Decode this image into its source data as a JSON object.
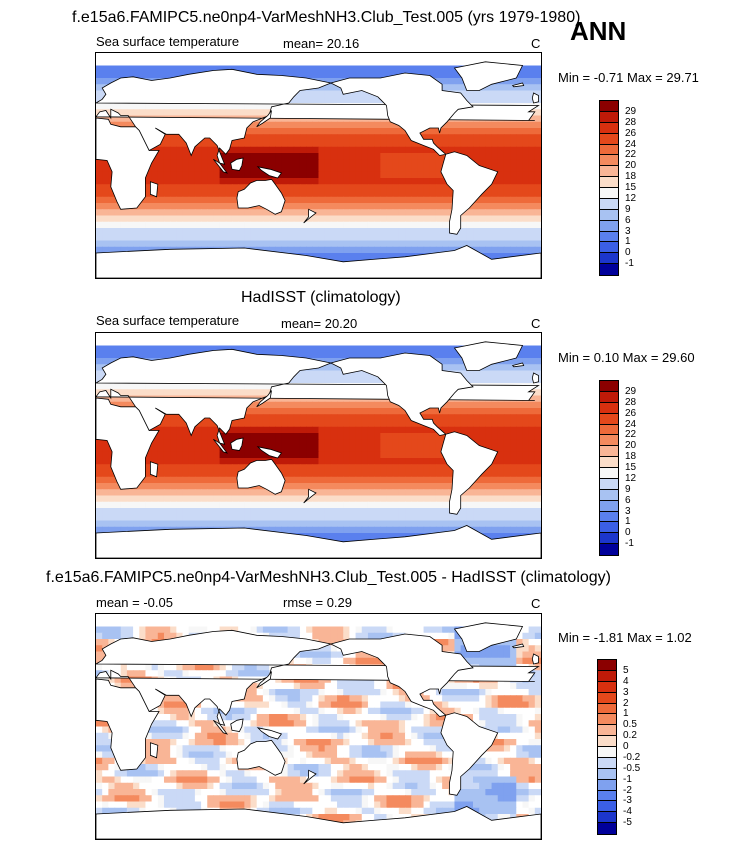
{
  "season": "ANN",
  "panels": [
    {
      "title": "f.e15a6.FAMIPC5.ne0np4-VarMeshNH3.Club_Test.005 (yrs 1979-1980)",
      "left_label": "Sea surface temperature",
      "center_label": "mean=  20.16",
      "right_label": "C",
      "minmax": "Min =  -0.71 Max =  29.71",
      "levels": [
        "29",
        "28",
        "26",
        "24",
        "22",
        "20",
        "18",
        "15",
        "12",
        "9",
        "6",
        "3",
        "1",
        "0",
        "-1"
      ],
      "colors": [
        "#8b0000",
        "#bf1a08",
        "#d8300f",
        "#e4481b",
        "#ee6a3a",
        "#f48a5e",
        "#f9b596",
        "#fbddc9",
        "#f7f7f7",
        "#cad9f6",
        "#a8c2f2",
        "#7fa1ef",
        "#5a80ee",
        "#3b5fe6",
        "#1c36cc",
        "#00009a"
      ]
    },
    {
      "title": "HadISST (climatology)",
      "left_label": "Sea surface temperature",
      "center_label": "mean=  20.20",
      "right_label": "C",
      "minmax": "Min =   0.10 Max =  29.60",
      "levels": [
        "29",
        "28",
        "26",
        "24",
        "22",
        "20",
        "18",
        "15",
        "12",
        "9",
        "6",
        "3",
        "1",
        "0",
        "-1"
      ],
      "colors": [
        "#8b0000",
        "#bf1a08",
        "#d8300f",
        "#e4481b",
        "#ee6a3a",
        "#f48a5e",
        "#f9b596",
        "#fbddc9",
        "#f7f7f7",
        "#cad9f6",
        "#a8c2f2",
        "#7fa1ef",
        "#5a80ee",
        "#3b5fe6",
        "#1c36cc",
        "#00009a"
      ]
    },
    {
      "title": "f.e15a6.FAMIPC5.ne0np4-VarMeshNH3.Club_Test.005 - HadISST (climatology)",
      "left_label": "mean =  -0.05",
      "center_label": "rmse =   0.29",
      "right_label": "C",
      "minmax": "Min =  -1.81 Max =   1.02",
      "levels": [
        "5",
        "4",
        "3",
        "2",
        "1",
        "0.5",
        "0.2",
        "0",
        "-0.2",
        "-0.5",
        "-1",
        "-2",
        "-3",
        "-4",
        "-5"
      ],
      "colors": [
        "#8b0000",
        "#bf1a08",
        "#d8300f",
        "#e4481b",
        "#ee6a3a",
        "#f48a5e",
        "#f9b596",
        "#fbddc9",
        "#f7f7f7",
        "#cad9f6",
        "#a8c2f2",
        "#7fa1ef",
        "#5a80ee",
        "#3b5fe6",
        "#1c36cc",
        "#00009a"
      ]
    }
  ]
}
